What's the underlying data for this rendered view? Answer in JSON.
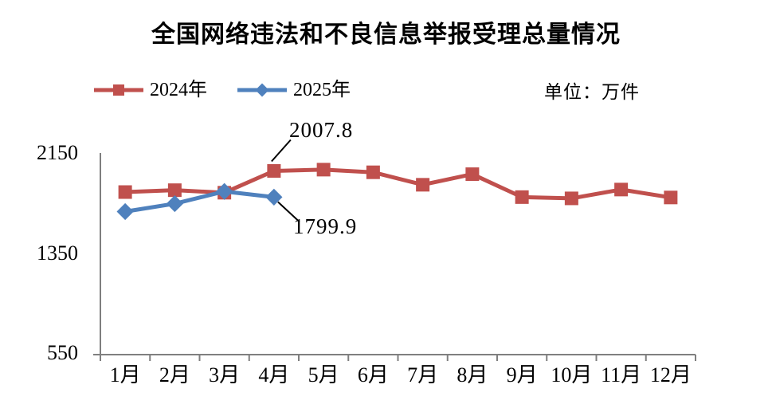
{
  "title": "全国网络违法和不良信息举报受理总量情况",
  "unit_label": "单位：万件",
  "legend": [
    {
      "label": "2024年",
      "color": "#C0504D",
      "marker": "square"
    },
    {
      "label": "2025年",
      "color": "#4F81BD",
      "marker": "diamond"
    }
  ],
  "colors": {
    "series_2024": "#C0504D",
    "series_2025": "#4F81BD",
    "axis": "#7F7F7F",
    "text": "#000000",
    "background": "#FFFFFF"
  },
  "chart_data": {
    "type": "line",
    "title": "全国网络违法和不良信息举报受理总量情况",
    "unit": "万件",
    "categories": [
      "1月",
      "2月",
      "3月",
      "4月",
      "5月",
      "6月",
      "7月",
      "8月",
      "9月",
      "10月",
      "11月",
      "12月"
    ],
    "series": [
      {
        "name": "2024年",
        "color": "#C0504D",
        "marker": "square",
        "values": [
          1840,
          1855,
          1835,
          2007.8,
          2018,
          1997,
          1898,
          1982,
          1800,
          1790,
          1860,
          1797
        ]
      },
      {
        "name": "2025年",
        "color": "#4F81BD",
        "marker": "diamond",
        "values": [
          1685,
          1748,
          1845,
          1799.9
        ]
      }
    ],
    "yticks": [
      2150,
      1350,
      550
    ],
    "ylim": [
      550,
      2150
    ],
    "grid": false,
    "legend_position": "top-left",
    "annotations": [
      {
        "text": "2007.8",
        "series": "2024年",
        "category": "4月",
        "value": 2007.8,
        "placement": "above"
      },
      {
        "text": "1799.9",
        "series": "2025年",
        "category": "4月",
        "value": 1799.9,
        "placement": "below"
      }
    ]
  }
}
